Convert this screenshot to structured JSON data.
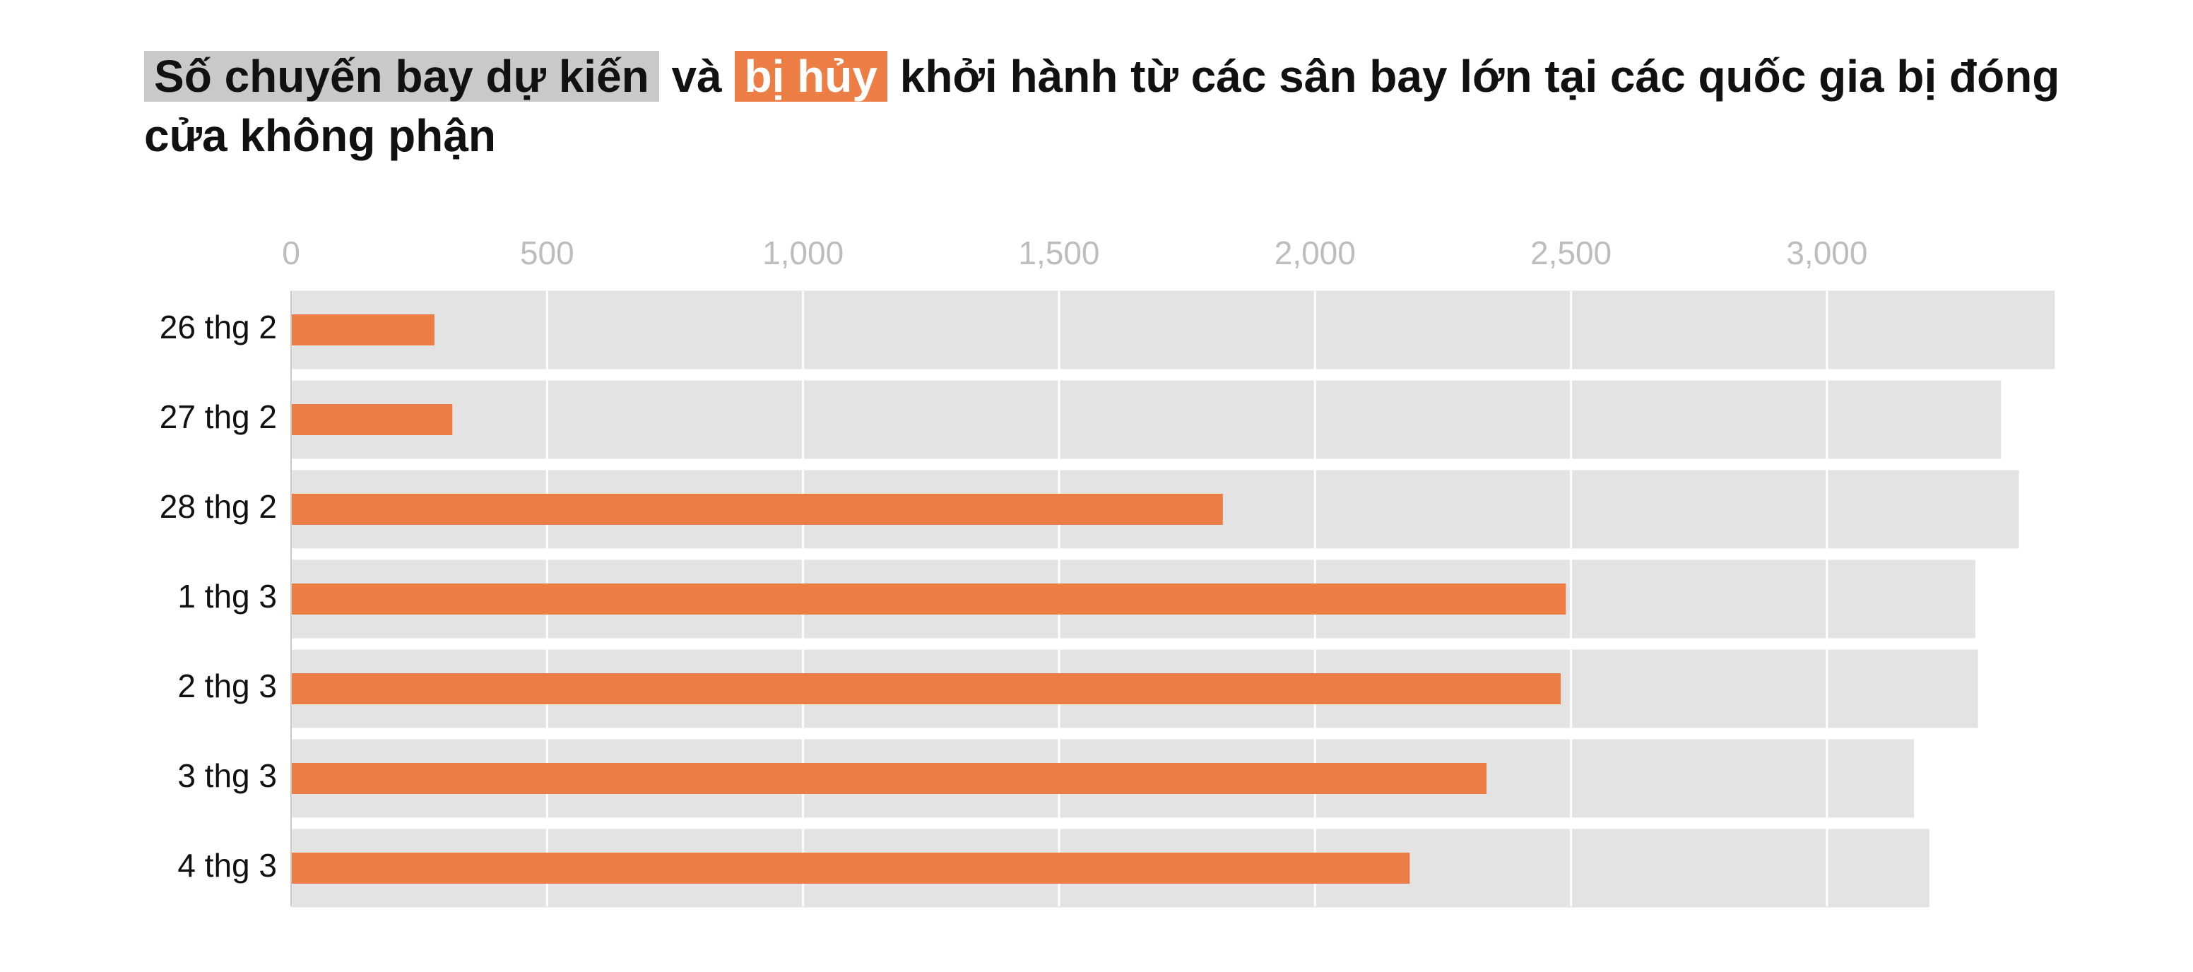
{
  "chart_data": {
    "type": "bar",
    "orientation": "horizontal",
    "overlap": true,
    "title_connector": "và",
    "title_rest": "khởi hành từ các sân bay lớn tại các quốc gia bị đóng cửa không phận",
    "categories": [
      "26 thg 2",
      "27 thg 2",
      "28 thg 2",
      "1 thg 3",
      "2 thg 3",
      "3 thg 3",
      "4 thg 3"
    ],
    "series": [
      {
        "name": "Số chuyến bay dự kiến",
        "color": "#e3e3e3",
        "values": [
          3445,
          3340,
          3375,
          3290,
          3295,
          3170,
          3200
        ]
      },
      {
        "name": "bị hủy",
        "color": "#ec7d45",
        "values": [
          280,
          315,
          1820,
          2490,
          2480,
          2335,
          2185
        ]
      }
    ],
    "xlim": [
      0,
      3450
    ],
    "xticks": [
      0,
      500,
      {
        "value": 1000,
        "label": "1,000"
      },
      {
        "value": 1500,
        "label": "1,500"
      },
      {
        "value": 2000,
        "label": "2,000"
      },
      {
        "value": 2500,
        "label": "2,500"
      },
      {
        "value": 3000,
        "label": "3,000"
      }
    ],
    "grid": true
  }
}
